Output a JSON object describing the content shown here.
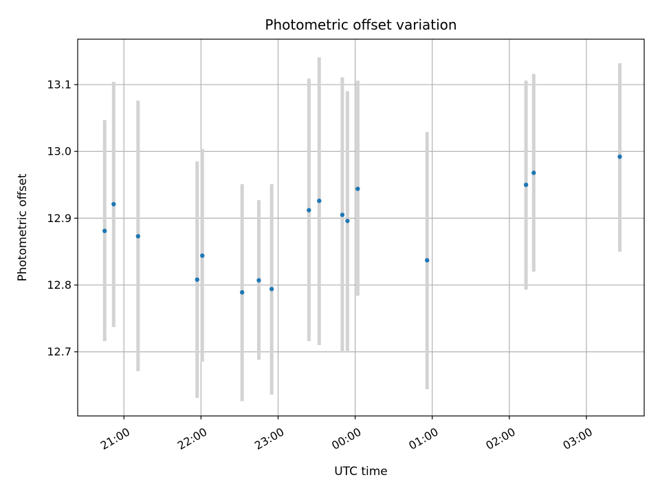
{
  "chart_data": {
    "type": "scatter",
    "title": "Photometric offset variation",
    "xlabel": "UTC time",
    "ylabel": "Photometric offset",
    "x_tick_labels": [
      "21:00",
      "22:00",
      "23:00",
      "00:00",
      "01:00",
      "02:00",
      "03:00"
    ],
    "y_tick_labels": [
      "12.7",
      "12.8",
      "12.9",
      "13.0",
      "13.1"
    ],
    "y_ticks": [
      12.7,
      12.8,
      12.9,
      13.0,
      13.1
    ],
    "ylim": [
      12.604,
      13.168
    ],
    "xlim": [
      "20:24",
      "03:45"
    ],
    "grid": true,
    "colors": {
      "points": "#1f77b4",
      "errorbars": "#d3d3d3",
      "grid": "#b0b0b0"
    },
    "points": [
      {
        "t": "20:45",
        "y": 12.881,
        "err_low": 12.716,
        "err_high": 13.047
      },
      {
        "t": "20:52",
        "y": 12.921,
        "err_low": 12.737,
        "err_high": 13.104
      },
      {
        "t": "21:11",
        "y": 12.873,
        "err_low": 12.671,
        "err_high": 13.076
      },
      {
        "t": "21:57",
        "y": 12.808,
        "err_low": 12.631,
        "err_high": 12.985
      },
      {
        "t": "22:01",
        "y": 12.844,
        "err_low": 12.685,
        "err_high": 13.004
      },
      {
        "t": "22:32",
        "y": 12.789,
        "err_low": 12.626,
        "err_high": 12.951
      },
      {
        "t": "22:45",
        "y": 12.807,
        "err_low": 12.688,
        "err_high": 12.927
      },
      {
        "t": "22:55",
        "y": 12.794,
        "err_low": 12.636,
        "err_high": 12.951
      },
      {
        "t": "23:24",
        "y": 12.912,
        "err_low": 12.716,
        "err_high": 13.109
      },
      {
        "t": "23:32",
        "y": 12.926,
        "err_low": 12.71,
        "err_high": 13.141
      },
      {
        "t": "23:50",
        "y": 12.905,
        "err_low": 12.699,
        "err_high": 13.111
      },
      {
        "t": "23:54",
        "y": 12.896,
        "err_low": 12.699,
        "err_high": 13.09
      },
      {
        "t": "00:02",
        "y": 12.944,
        "err_low": 12.784,
        "err_high": 13.106
      },
      {
        "t": "00:56",
        "y": 12.837,
        "err_low": 12.644,
        "err_high": 13.029
      },
      {
        "t": "02:13",
        "y": 12.95,
        "err_low": 12.793,
        "err_high": 13.106
      },
      {
        "t": "02:19",
        "y": 12.968,
        "err_low": 12.82,
        "err_high": 13.116
      },
      {
        "t": "03:26",
        "y": 12.992,
        "err_low": 12.85,
        "err_high": 13.132
      }
    ]
  }
}
